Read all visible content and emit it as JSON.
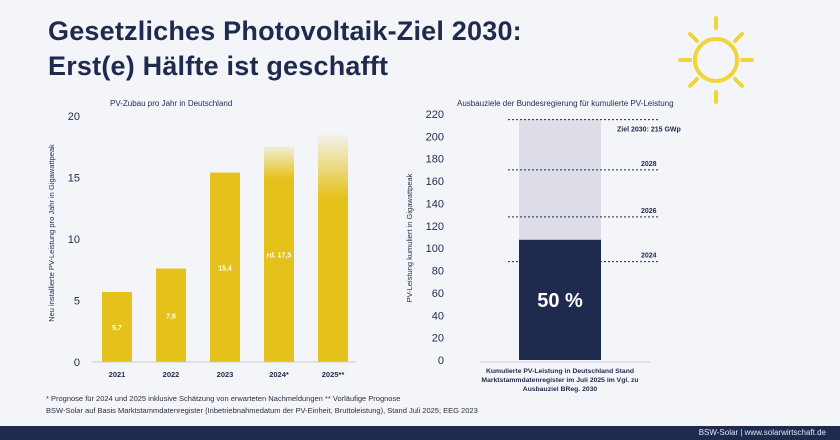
{
  "title": {
    "line1": "Gesetzliches Photovoltaik-Ziel 2030:",
    "line2": "Erst(e) Hälfte ist geschafft"
  },
  "colors": {
    "navy": "#1f2a4f",
    "yellow": "#e5c21b",
    "light_gray": "#dcdde6",
    "sun": "#f0d43a"
  },
  "icons": {
    "sun": "sun-icon"
  },
  "chart_data": [
    {
      "type": "bar",
      "title": "PV-Zubau pro Jahr in Deutschland",
      "ylabel": "Neu installierte PV-Leistung pro Jahr in Gigawattpeak",
      "xlabel": "",
      "ylim": [
        0,
        20
      ],
      "yticks": [
        0,
        5,
        10,
        15,
        20
      ],
      "categories": [
        "2021",
        "2022",
        "2023",
        "2024*",
        "2025**"
      ],
      "values": [
        5.7,
        7.6,
        15.4,
        17.5,
        18.5
      ],
      "labels": [
        "5,7",
        "7,6",
        "15,4",
        "rd. 17,5",
        ""
      ],
      "estimated": [
        false,
        false,
        false,
        true,
        true
      ],
      "grid": false
    },
    {
      "type": "bar",
      "title": "Ausbauziele der Bundesregierung für kumulierte PV-Leistung",
      "ylabel": "PV-Leistung kumuliert in Gigawattpeak",
      "ylim": [
        0,
        220
      ],
      "yticks": [
        0,
        20,
        40,
        60,
        80,
        100,
        120,
        140,
        160,
        180,
        200,
        220
      ],
      "category": "Kumulierte PV-Leistung in Deutschland Stand Marktstammdatenregister im Juli 2025 im Vgl. zu Ausbauziel BReg. 2030",
      "achieved": 107.5,
      "target": 215,
      "achieved_label": "50 %",
      "milestones": [
        {
          "label": "Ziel 2030: 215 GWp",
          "value": 215
        },
        {
          "label": "2028",
          "value": 170
        },
        {
          "label": "2026",
          "value": 128
        },
        {
          "label": "2024",
          "value": 88
        }
      ],
      "grid": false
    }
  ],
  "footnotes": {
    "line1": "* Prognose für 2024 und 2025 inklusive Schätzung von erwarteten Nachmeldungen  ** Vorläufige Prognose",
    "line2": "BSW-Solar auf Basis Marktstammdatenregister (Inbetriebnahmedatum der PV-Einheit, Bruttoleistung), Stand Juli 2025; EEG 2023"
  },
  "brand": "BSW-Solar | www.solarwirtschaft.de"
}
